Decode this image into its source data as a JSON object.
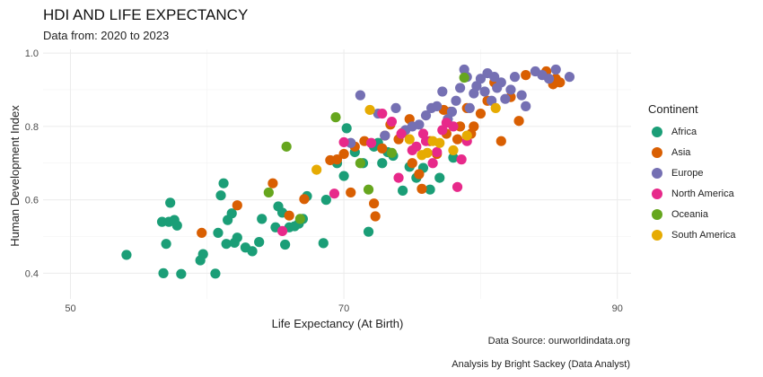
{
  "chart_data": {
    "type": "scatter",
    "title": "HDI AND LIFE EXPECTANCY",
    "subtitle": "Data from: 2020 to 2023",
    "xlabel": "Life Expectancy (At Birth)",
    "ylabel": "Human Development Index",
    "xlim": [
      48,
      91
    ],
    "ylim": [
      0.33,
      1.01
    ],
    "xticks": [
      "50",
      "70",
      "90"
    ],
    "yticks": [
      "0.4",
      "0.6",
      "0.8",
      "1.0"
    ],
    "xtick_values": [
      50,
      70,
      90
    ],
    "ytick_values": [
      0.4,
      0.6,
      0.8,
      1.0
    ],
    "grid": true,
    "legend_title": "Continent",
    "legend_position": "right",
    "caption": [
      "Data Source: ourworldindata.org",
      "Analysis by Bright Sackey (Data Analyst)"
    ],
    "series": [
      {
        "name": "Africa",
        "color": "#1b9e77",
        "points": [
          [
            54.1,
            0.45
          ],
          [
            56.7,
            0.54
          ],
          [
            56.8,
            0.4
          ],
          [
            57.0,
            0.48
          ],
          [
            57.2,
            0.54
          ],
          [
            57.3,
            0.592
          ],
          [
            57.6,
            0.545
          ],
          [
            57.8,
            0.53
          ],
          [
            58.1,
            0.398
          ],
          [
            59.5,
            0.435
          ],
          [
            59.7,
            0.452
          ],
          [
            60.6,
            0.399
          ],
          [
            60.8,
            0.51
          ],
          [
            61.0,
            0.612
          ],
          [
            61.2,
            0.645
          ],
          [
            61.4,
            0.48
          ],
          [
            61.5,
            0.545
          ],
          [
            61.8,
            0.563
          ],
          [
            62.0,
            0.483
          ],
          [
            62.2,
            0.497
          ],
          [
            62.8,
            0.47
          ],
          [
            63.3,
            0.46
          ],
          [
            63.8,
            0.485
          ],
          [
            64.0,
            0.548
          ],
          [
            65.0,
            0.525
          ],
          [
            65.2,
            0.582
          ],
          [
            65.5,
            0.565
          ],
          [
            65.7,
            0.478
          ],
          [
            66.0,
            0.525
          ],
          [
            66.4,
            0.528
          ],
          [
            66.7,
            0.535
          ],
          [
            67.0,
            0.548
          ],
          [
            67.3,
            0.61
          ],
          [
            68.5,
            0.482
          ],
          [
            68.7,
            0.6
          ],
          [
            69.5,
            0.7
          ],
          [
            70.0,
            0.665
          ],
          [
            70.2,
            0.795
          ],
          [
            70.8,
            0.73
          ],
          [
            71.4,
            0.7
          ],
          [
            71.8,
            0.513
          ],
          [
            72.2,
            0.745
          ],
          [
            72.5,
            0.755
          ],
          [
            72.8,
            0.7
          ],
          [
            73.2,
            0.73
          ],
          [
            73.6,
            0.72
          ],
          [
            74.3,
            0.625
          ],
          [
            74.8,
            0.69
          ],
          [
            75.3,
            0.66
          ],
          [
            75.8,
            0.687
          ],
          [
            76.3,
            0.628
          ],
          [
            77.0,
            0.66
          ],
          [
            78.0,
            0.715
          ]
        ]
      },
      {
        "name": "Asia",
        "color": "#d95f02",
        "points": [
          [
            59.6,
            0.51
          ],
          [
            62.2,
            0.585
          ],
          [
            64.8,
            0.645
          ],
          [
            66.0,
            0.557
          ],
          [
            67.1,
            0.602
          ],
          [
            69.0,
            0.708
          ],
          [
            69.5,
            0.71
          ],
          [
            70.0,
            0.725
          ],
          [
            70.5,
            0.62
          ],
          [
            70.8,
            0.745
          ],
          [
            71.5,
            0.76
          ],
          [
            72.2,
            0.59
          ],
          [
            72.3,
            0.555
          ],
          [
            72.8,
            0.74
          ],
          [
            73.0,
            0.775
          ],
          [
            73.4,
            0.805
          ],
          [
            74.0,
            0.765
          ],
          [
            74.3,
            0.783
          ],
          [
            74.8,
            0.82
          ],
          [
            75.0,
            0.7
          ],
          [
            75.5,
            0.67
          ],
          [
            75.7,
            0.63
          ],
          [
            76.3,
            0.76
          ],
          [
            76.8,
            0.725
          ],
          [
            77.3,
            0.845
          ],
          [
            77.5,
            0.78
          ],
          [
            77.8,
            0.84
          ],
          [
            78.3,
            0.765
          ],
          [
            78.5,
            0.8
          ],
          [
            79.0,
            0.85
          ],
          [
            79.3,
            0.78
          ],
          [
            79.5,
            0.8
          ],
          [
            80.0,
            0.835
          ],
          [
            80.5,
            0.87
          ],
          [
            81.0,
            0.92
          ],
          [
            81.5,
            0.76
          ],
          [
            82.2,
            0.88
          ],
          [
            82.8,
            0.815
          ],
          [
            83.3,
            0.94
          ],
          [
            84.8,
            0.95
          ],
          [
            85.3,
            0.915
          ],
          [
            85.5,
            0.93
          ],
          [
            85.8,
            0.92
          ]
        ]
      },
      {
        "name": "Europe",
        "color": "#7570b3",
        "points": [
          [
            70.5,
            0.755
          ],
          [
            71.2,
            0.885
          ],
          [
            72.5,
            0.835
          ],
          [
            73.0,
            0.775
          ],
          [
            73.8,
            0.85
          ],
          [
            74.5,
            0.79
          ],
          [
            75.0,
            0.8
          ],
          [
            75.5,
            0.805
          ],
          [
            76.0,
            0.83
          ],
          [
            76.4,
            0.85
          ],
          [
            76.8,
            0.855
          ],
          [
            77.2,
            0.895
          ],
          [
            77.6,
            0.82
          ],
          [
            77.9,
            0.84
          ],
          [
            78.2,
            0.87
          ],
          [
            78.5,
            0.905
          ],
          [
            78.8,
            0.955
          ],
          [
            79.0,
            0.935
          ],
          [
            79.2,
            0.85
          ],
          [
            79.5,
            0.89
          ],
          [
            79.7,
            0.91
          ],
          [
            80.0,
            0.93
          ],
          [
            80.3,
            0.895
          ],
          [
            80.5,
            0.945
          ],
          [
            80.8,
            0.87
          ],
          [
            81.0,
            0.935
          ],
          [
            81.2,
            0.905
          ],
          [
            81.5,
            0.92
          ],
          [
            81.8,
            0.875
          ],
          [
            82.2,
            0.9
          ],
          [
            82.5,
            0.935
          ],
          [
            83.0,
            0.885
          ],
          [
            83.3,
            0.855
          ],
          [
            84.0,
            0.95
          ],
          [
            84.5,
            0.94
          ],
          [
            85.0,
            0.93
          ],
          [
            85.5,
            0.955
          ],
          [
            86.5,
            0.935
          ]
        ]
      },
      {
        "name": "North America",
        "color": "#e7298a",
        "points": [
          [
            65.5,
            0.515
          ],
          [
            69.3,
            0.617
          ],
          [
            70.0,
            0.757
          ],
          [
            72.0,
            0.755
          ],
          [
            72.8,
            0.835
          ],
          [
            73.5,
            0.813
          ],
          [
            74.0,
            0.66
          ],
          [
            74.2,
            0.78
          ],
          [
            75.0,
            0.735
          ],
          [
            75.3,
            0.745
          ],
          [
            75.8,
            0.78
          ],
          [
            76.0,
            0.76
          ],
          [
            76.5,
            0.7
          ],
          [
            76.8,
            0.73
          ],
          [
            77.2,
            0.79
          ],
          [
            77.5,
            0.81
          ],
          [
            78.0,
            0.8
          ],
          [
            78.3,
            0.635
          ],
          [
            78.6,
            0.71
          ],
          [
            79.0,
            0.76
          ]
        ]
      },
      {
        "name": "Oceania",
        "color": "#66a61e",
        "points": [
          [
            64.5,
            0.62
          ],
          [
            65.8,
            0.745
          ],
          [
            66.8,
            0.548
          ],
          [
            69.4,
            0.825
          ],
          [
            71.2,
            0.7
          ],
          [
            71.8,
            0.628
          ],
          [
            73.5,
            0.728
          ],
          [
            78.8,
            0.933
          ]
        ]
      },
      {
        "name": "South America",
        "color": "#e6ab02",
        "points": [
          [
            68.0,
            0.682
          ],
          [
            71.9,
            0.845
          ],
          [
            74.8,
            0.765
          ],
          [
            75.7,
            0.722
          ],
          [
            76.1,
            0.728
          ],
          [
            76.5,
            0.76
          ],
          [
            77.0,
            0.755
          ],
          [
            78.0,
            0.735
          ],
          [
            79.0,
            0.775
          ],
          [
            81.1,
            0.85
          ]
        ]
      }
    ]
  }
}
